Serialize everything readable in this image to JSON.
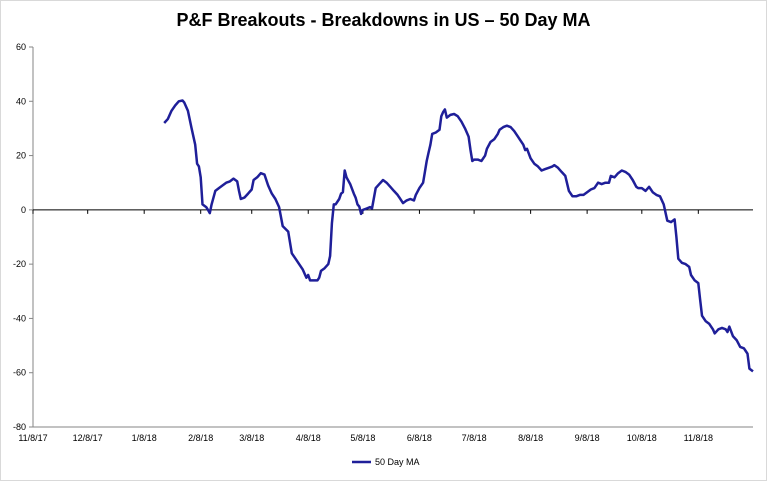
{
  "chart_data": {
    "type": "line",
    "title": "P&F Breakouts - Breakdowns in US – 50 Day MA",
    "xlabel": "",
    "ylabel": "",
    "ylim": [
      -80,
      60
    ],
    "y_ticks": [
      "60",
      "40",
      "20",
      "0",
      "-20",
      "-40",
      "-60",
      "-80"
    ],
    "x_ticks": [
      "11/8/17",
      "12/8/17",
      "1/8/18",
      "2/8/18",
      "3/8/18",
      "4/8/18",
      "5/8/18",
      "6/8/18",
      "7/8/18",
      "8/8/18",
      "9/8/18",
      "10/8/18",
      "11/8/18"
    ],
    "xlim": [
      "2017-11-08",
      "2018-12-08"
    ],
    "grid": false,
    "legend": "bottom",
    "color": "#1f1f99",
    "series": [
      {
        "name": "50 Day MA",
        "points": [
          [
            "2018-01-19",
            32
          ],
          [
            "2018-01-21",
            33.5
          ],
          [
            "2018-01-23",
            36.5
          ],
          [
            "2018-01-25",
            38.5
          ],
          [
            "2018-01-27",
            40
          ],
          [
            "2018-01-29",
            40.3
          ],
          [
            "2018-01-30",
            39.5
          ],
          [
            "2018-02-01",
            36.5
          ],
          [
            "2018-02-03",
            30
          ],
          [
            "2018-02-05",
            24
          ],
          [
            "2018-02-06",
            17
          ],
          [
            "2018-02-07",
            16
          ],
          [
            "2018-02-08",
            12
          ],
          [
            "2018-02-09",
            2
          ],
          [
            "2018-02-11",
            1
          ],
          [
            "2018-02-12",
            0
          ],
          [
            "2018-02-13",
            -1.2
          ],
          [
            "2018-02-14",
            2
          ],
          [
            "2018-02-16",
            7
          ],
          [
            "2018-02-18",
            8
          ],
          [
            "2018-02-20",
            9
          ],
          [
            "2018-02-22",
            10
          ],
          [
            "2018-02-24",
            10.5
          ],
          [
            "2018-02-26",
            11.5
          ],
          [
            "2018-02-28",
            10.5
          ],
          [
            "2018-03-01",
            7
          ],
          [
            "2018-03-02",
            4
          ],
          [
            "2018-03-04",
            4.5
          ],
          [
            "2018-03-06",
            6
          ],
          [
            "2018-03-08",
            7.5
          ],
          [
            "2018-03-09",
            11
          ],
          [
            "2018-03-11",
            12
          ],
          [
            "2018-03-13",
            13.5
          ],
          [
            "2018-03-15",
            13
          ],
          [
            "2018-03-17",
            9
          ],
          [
            "2018-03-19",
            6
          ],
          [
            "2018-03-21",
            4
          ],
          [
            "2018-03-23",
            1
          ],
          [
            "2018-03-25",
            -6
          ],
          [
            "2018-03-28",
            -8
          ],
          [
            "2018-03-30",
            -16
          ],
          [
            "2018-04-01",
            -18
          ],
          [
            "2018-04-03",
            -20
          ],
          [
            "2018-04-05",
            -22
          ],
          [
            "2018-04-07",
            -25
          ],
          [
            "2018-04-08",
            -24
          ],
          [
            "2018-04-09",
            -26
          ],
          [
            "2018-04-11",
            -26
          ],
          [
            "2018-04-13",
            -26
          ],
          [
            "2018-04-14",
            -25
          ],
          [
            "2018-04-15",
            -22.5
          ],
          [
            "2018-04-17",
            -21.5
          ],
          [
            "2018-04-19",
            -20
          ],
          [
            "2018-04-20",
            -17
          ],
          [
            "2018-04-21",
            -5
          ],
          [
            "2018-04-22",
            2
          ],
          [
            "2018-04-23",
            2
          ],
          [
            "2018-04-25",
            4
          ],
          [
            "2018-04-26",
            6
          ],
          [
            "2018-04-27",
            6.5
          ],
          [
            "2018-04-28",
            14.5
          ],
          [
            "2018-04-29",
            12
          ],
          [
            "2018-05-01",
            9.5
          ],
          [
            "2018-05-03",
            6
          ],
          [
            "2018-05-04",
            4.5
          ],
          [
            "2018-05-05",
            2
          ],
          [
            "2018-05-06",
            1.2
          ],
          [
            "2018-05-07",
            -1.5
          ],
          [
            "2018-05-08",
            0
          ],
          [
            "2018-05-10",
            0.5
          ],
          [
            "2018-05-12",
            1
          ],
          [
            "2018-05-13",
            0.5
          ],
          [
            "2018-05-15",
            8
          ],
          [
            "2018-05-17",
            9.5
          ],
          [
            "2018-05-19",
            11
          ],
          [
            "2018-05-21",
            10
          ],
          [
            "2018-05-23",
            8.5
          ],
          [
            "2018-05-25",
            7
          ],
          [
            "2018-05-27",
            5.5
          ],
          [
            "2018-05-28",
            4.5
          ],
          [
            "2018-05-30",
            2.5
          ],
          [
            "2018-06-01",
            3.5
          ],
          [
            "2018-06-03",
            4
          ],
          [
            "2018-06-05",
            3.5
          ],
          [
            "2018-06-06",
            5.5
          ],
          [
            "2018-06-08",
            8
          ],
          [
            "2018-06-10",
            10
          ],
          [
            "2018-06-11",
            14
          ],
          [
            "2018-06-12",
            18
          ],
          [
            "2018-06-13",
            21
          ],
          [
            "2018-06-14",
            24
          ],
          [
            "2018-06-15",
            28
          ],
          [
            "2018-06-17",
            28.5
          ],
          [
            "2018-06-19",
            29.5
          ],
          [
            "2018-06-20",
            34.5
          ],
          [
            "2018-06-21",
            36
          ],
          [
            "2018-06-22",
            37
          ],
          [
            "2018-06-23",
            34
          ],
          [
            "2018-06-25",
            35
          ],
          [
            "2018-06-27",
            35.3
          ],
          [
            "2018-06-29",
            34.5
          ],
          [
            "2018-07-01",
            32.5
          ],
          [
            "2018-07-03",
            30
          ],
          [
            "2018-07-05",
            27
          ],
          [
            "2018-07-06",
            22
          ],
          [
            "2018-07-07",
            18
          ],
          [
            "2018-07-08",
            18.5
          ],
          [
            "2018-07-10",
            18.5
          ],
          [
            "2018-07-12",
            18
          ],
          [
            "2018-07-14",
            20
          ],
          [
            "2018-07-15",
            22.5
          ],
          [
            "2018-07-17",
            25
          ],
          [
            "2018-07-19",
            26
          ],
          [
            "2018-07-21",
            28
          ],
          [
            "2018-07-22",
            29.5
          ],
          [
            "2018-07-24",
            30.5
          ],
          [
            "2018-07-26",
            31
          ],
          [
            "2018-07-28",
            30.5
          ],
          [
            "2018-07-30",
            29
          ],
          [
            "2018-08-01",
            27
          ],
          [
            "2018-08-02",
            26
          ],
          [
            "2018-08-04",
            24
          ],
          [
            "2018-08-05",
            22
          ],
          [
            "2018-08-06",
            22.5
          ],
          [
            "2018-08-08",
            19
          ],
          [
            "2018-08-10",
            17
          ],
          [
            "2018-08-12",
            16
          ],
          [
            "2018-08-14",
            14.5
          ],
          [
            "2018-08-16",
            15
          ],
          [
            "2018-08-18",
            15.5
          ],
          [
            "2018-08-20",
            16
          ],
          [
            "2018-08-21",
            16.5
          ],
          [
            "2018-08-23",
            15.5
          ],
          [
            "2018-08-25",
            14
          ],
          [
            "2018-08-27",
            12.5
          ],
          [
            "2018-08-29",
            7
          ],
          [
            "2018-08-31",
            5
          ],
          [
            "2018-09-02",
            5
          ],
          [
            "2018-09-04",
            5.5
          ],
          [
            "2018-09-06",
            5.5
          ],
          [
            "2018-09-08",
            6.5
          ],
          [
            "2018-09-10",
            7.5
          ],
          [
            "2018-09-12",
            8
          ],
          [
            "2018-09-14",
            10
          ],
          [
            "2018-09-16",
            9.5
          ],
          [
            "2018-09-18",
            10
          ],
          [
            "2018-09-20",
            10
          ],
          [
            "2018-09-21",
            12.5
          ],
          [
            "2018-09-23",
            12
          ],
          [
            "2018-09-25",
            13.5
          ],
          [
            "2018-09-27",
            14.5
          ],
          [
            "2018-09-29",
            14
          ],
          [
            "2018-10-01",
            13
          ],
          [
            "2018-10-03",
            11
          ],
          [
            "2018-10-05",
            8.5
          ],
          [
            "2018-10-06",
            8
          ],
          [
            "2018-10-08",
            8
          ],
          [
            "2018-10-10",
            7
          ],
          [
            "2018-10-12",
            8.5
          ],
          [
            "2018-10-14",
            6.5
          ],
          [
            "2018-10-16",
            5.5
          ],
          [
            "2018-10-18",
            5
          ],
          [
            "2018-10-20",
            2
          ],
          [
            "2018-10-22",
            -4
          ],
          [
            "2018-10-24",
            -4.5
          ],
          [
            "2018-10-26",
            -3.5
          ],
          [
            "2018-10-27",
            -10
          ],
          [
            "2018-10-28",
            -18
          ],
          [
            "2018-10-30",
            -19.5
          ],
          [
            "2018-11-01",
            -20
          ],
          [
            "2018-11-03",
            -21
          ],
          [
            "2018-11-04",
            -24
          ],
          [
            "2018-11-06",
            -26
          ],
          [
            "2018-11-08",
            -27
          ],
          [
            "2018-11-09",
            -33
          ],
          [
            "2018-11-10",
            -39
          ],
          [
            "2018-11-12",
            -41
          ],
          [
            "2018-11-14",
            -42
          ],
          [
            "2018-11-16",
            -44
          ],
          [
            "2018-11-17",
            -45.5
          ],
          [
            "2018-11-19",
            -44
          ],
          [
            "2018-11-21",
            -43.5
          ],
          [
            "2018-11-23",
            -44
          ],
          [
            "2018-11-24",
            -45
          ],
          [
            "2018-11-25",
            -43
          ],
          [
            "2018-11-27",
            -46.5
          ],
          [
            "2018-11-29",
            -48
          ],
          [
            "2018-12-01",
            -50.5
          ],
          [
            "2018-12-03",
            -51
          ],
          [
            "2018-12-04",
            -52
          ],
          [
            "2018-12-05",
            -53
          ],
          [
            "2018-12-06",
            -58.5
          ],
          [
            "2018-12-07",
            -59
          ],
          [
            "2018-12-08",
            -59.5
          ]
        ]
      }
    ]
  }
}
